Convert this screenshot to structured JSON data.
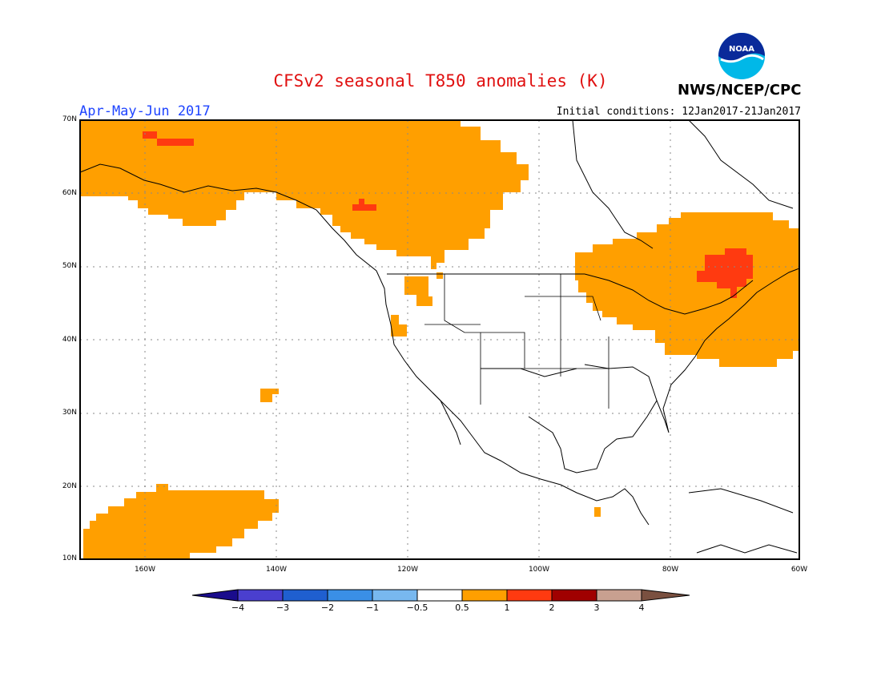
{
  "title": "CFSv2 seasonal T850 anomalies (K)",
  "season": "Apr-May-Jun 2017",
  "initial_conditions": "Initial conditions: 12Jan2017-21Jan2017",
  "agency": "NWS/NCEP/CPC",
  "logo_text": "NOAA",
  "lat_labels": [
    "70N",
    "60N",
    "50N",
    "40N",
    "30N",
    "20N",
    "10N"
  ],
  "lon_labels": [
    "160W",
    "140W",
    "120W",
    "100W",
    "80W",
    "60W"
  ],
  "colorbar": {
    "labels": [
      "−4",
      "−3",
      "−2",
      "−1",
      "−0.5",
      "0.5",
      "1",
      "2",
      "3",
      "4"
    ],
    "colors": [
      "#1a0c8c",
      "#4a3fcf",
      "#1f5fd0",
      "#3a8fe6",
      "#78b8ef",
      "#ffffff",
      "#ff9f00",
      "#ff3a10",
      "#a00000",
      "#c8a090",
      "#7a5040"
    ]
  },
  "colors": {
    "anomaly_0_5_to_1": "#ff9f00",
    "anomaly_1_to_2": "#ff3a10",
    "title": "#e01010",
    "season": "#1e44ff"
  }
}
